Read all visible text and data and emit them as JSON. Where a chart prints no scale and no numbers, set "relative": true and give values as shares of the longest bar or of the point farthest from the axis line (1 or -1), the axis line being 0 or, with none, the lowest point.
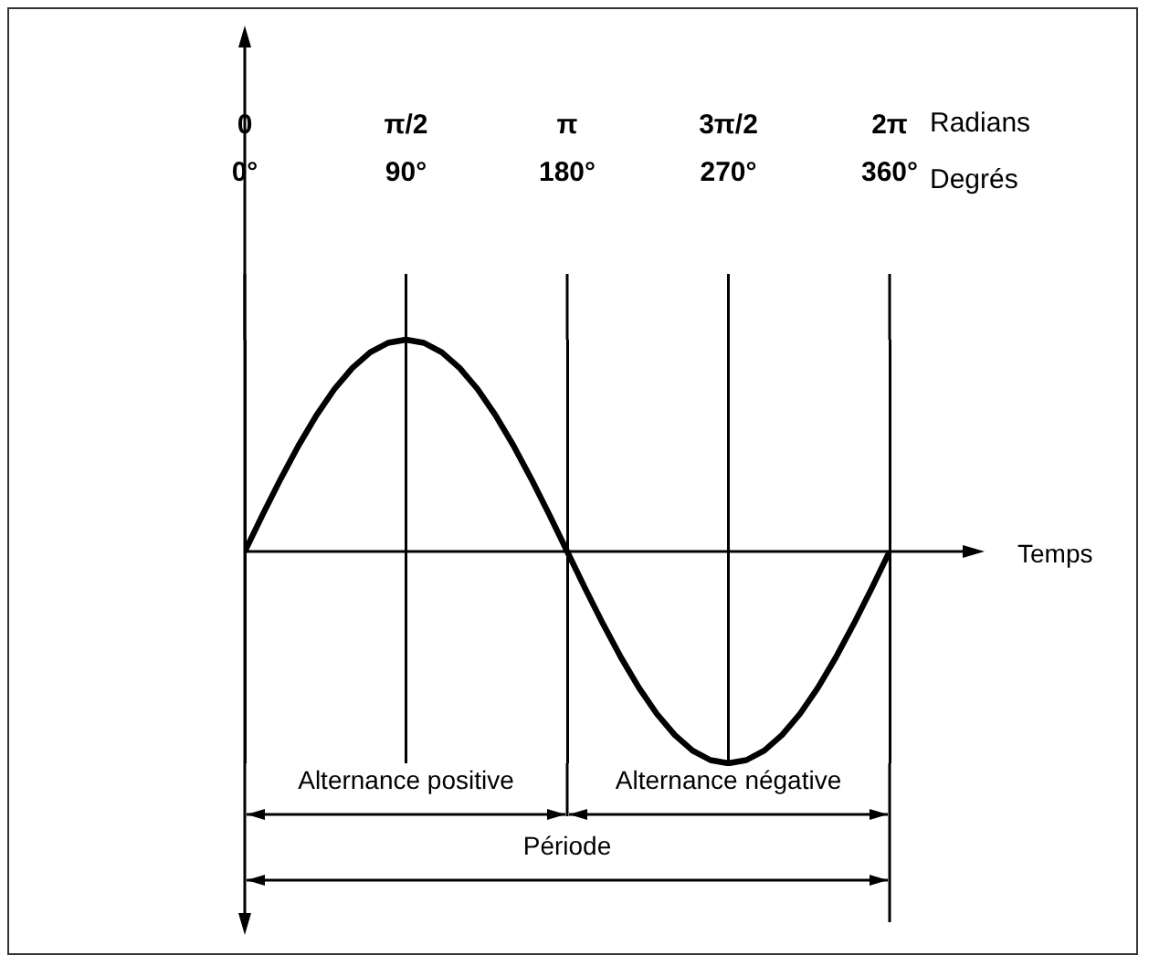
{
  "chart_data": {
    "type": "line",
    "relative": true,
    "xlabel": "Degrés",
    "x2label": "Radians",
    "x": [
      0,
      10,
      20,
      30,
      40,
      50,
      60,
      70,
      80,
      90,
      100,
      110,
      120,
      130,
      140,
      150,
      160,
      170,
      180,
      190,
      200,
      210,
      220,
      230,
      240,
      250,
      260,
      270,
      280,
      290,
      300,
      310,
      320,
      330,
      340,
      350,
      360
    ],
    "series": [
      {
        "color": "#000000",
        "values": [
          0,
          0.174,
          0.342,
          0.5,
          0.643,
          0.766,
          0.866,
          0.94,
          0.985,
          1,
          0.985,
          0.94,
          0.866,
          0.766,
          0.643,
          0.5,
          0.342,
          0.174,
          0,
          -0.174,
          -0.342,
          -0.5,
          -0.643,
          -0.766,
          -0.866,
          -0.94,
          -0.985,
          -1,
          -0.985,
          -0.94,
          -0.866,
          -0.766,
          -0.643,
          -0.5,
          -0.342,
          -0.174,
          0
        ]
      }
    ],
    "xlim": [
      0,
      360
    ],
    "xticks": [
      {
        "value": 0,
        "label": "0°"
      },
      {
        "value": 90,
        "label": "90°"
      },
      {
        "value": 180,
        "label": "180°"
      },
      {
        "value": 270,
        "label": "270°"
      },
      {
        "value": 360,
        "label": "360°"
      }
    ],
    "x2lim": [
      0,
      6.2832
    ],
    "x2ticks": [
      0,
      {
        "value": 1.5708,
        "label": "π/2"
      },
      {
        "value": 3.1416,
        "label": "π"
      },
      {
        "value": 4.7124,
        "label": "3π/2"
      },
      {
        "value": 6.2832,
        "label": "2π"
      }
    ],
    "grid": "x",
    "legend": false,
    "annotations": [
      "Temps",
      "Alternance positive",
      "Alternance négative",
      "Période"
    ]
  }
}
